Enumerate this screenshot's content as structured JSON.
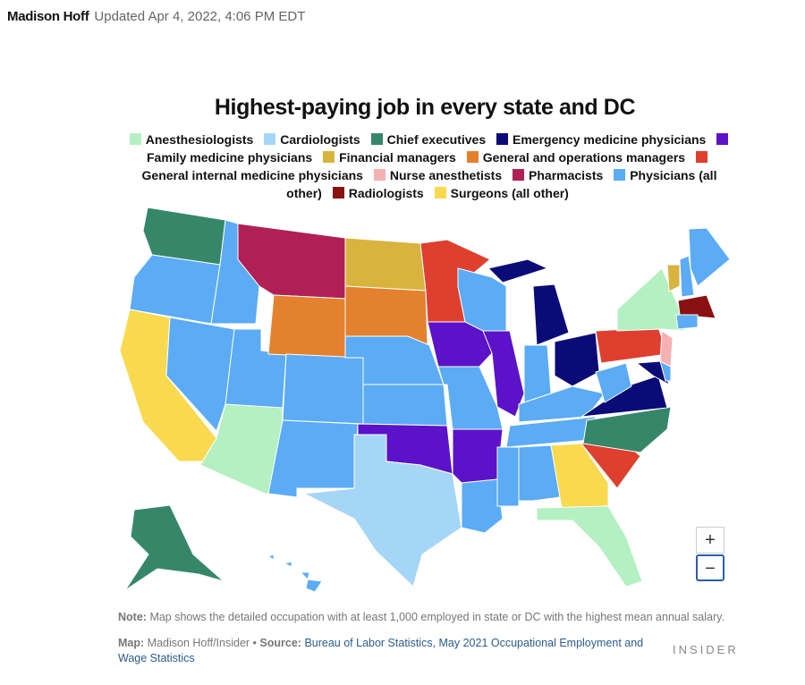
{
  "header": {
    "author": "Madison Hoff",
    "updated": "Updated Apr 4, 2022, 4:06 PM EDT"
  },
  "map": {
    "title": "Highest-paying job in every state and DC",
    "legend": [
      {
        "label": "Anesthesiologists",
        "color": "#b4f0c1"
      },
      {
        "label": "Cardiologists",
        "color": "#a6d6f7"
      },
      {
        "label": "Chief executives",
        "color": "#36876a"
      },
      {
        "label": "Emergency medicine physicians",
        "color": "#0b0b78"
      },
      {
        "label": "Family medicine physicians",
        "color": "#5b12c8"
      },
      {
        "label": "Financial managers",
        "color": "#d8b43e"
      },
      {
        "label": "General and operations managers",
        "color": "#e4812f"
      },
      {
        "label": "General internal medicine physicians",
        "color": "#de3f2f"
      },
      {
        "label": "Nurse anesthetists",
        "color": "#f5b1b1"
      },
      {
        "label": "Pharmacists",
        "color": "#b02056"
      },
      {
        "label": "Physicians (all other)",
        "color": "#5babf5"
      },
      {
        "label": "Radiologists",
        "color": "#8a1111"
      },
      {
        "label": "Surgeons (all other)",
        "color": "#f9d94f"
      }
    ]
  },
  "controls": {
    "zoom_in": "+",
    "zoom_out": "−"
  },
  "footer": {
    "note_label": "Note:",
    "note": "Map shows the detailed occupation with at least 1,000 employed in state or DC with the highest mean annual salary.",
    "map_label": "Map:",
    "map_credit": "Madison Hoff/Insider •",
    "source_label": "Source:",
    "source": "Bureau of Labor Statistics, May 2021 Occupational Employment and Wage Statistics",
    "logo": "INSIDER"
  }
}
